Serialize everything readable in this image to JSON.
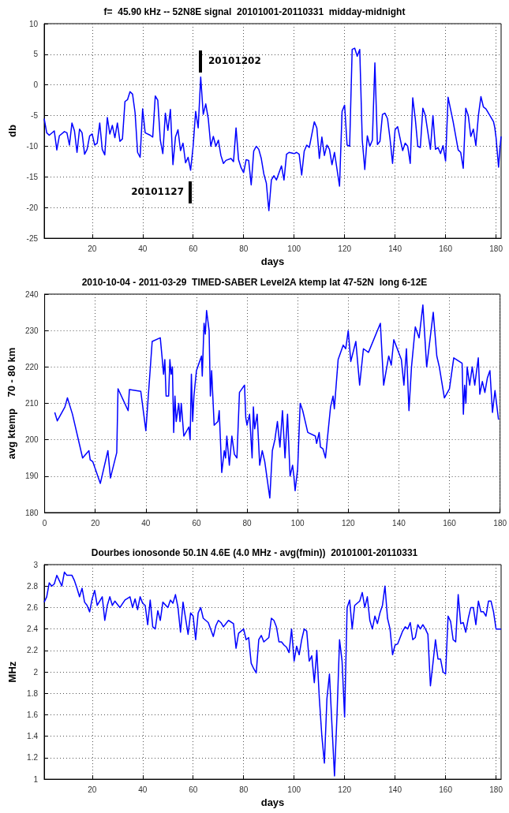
{
  "chart_data": [
    {
      "type": "line",
      "title": "f=  45.90 kHz -- 52N8E signal  20101001-20110331  midday-midnight",
      "xlabel": "days",
      "ylabel": "db",
      "xlim": [
        1,
        182
      ],
      "xticks": [
        20,
        40,
        60,
        80,
        100,
        120,
        140,
        160,
        180
      ],
      "ylim": [
        -25,
        10
      ],
      "yticks": [
        -25,
        -20,
        -15,
        -10,
        -5,
        0,
        5,
        10
      ],
      "grid": true,
      "marker": "none",
      "line_style": "solid",
      "annotations": [
        "20101202",
        "20101127"
      ],
      "series": [
        {
          "color": "#0000ff",
          "x": [
            1,
            2,
            3,
            5,
            6,
            7,
            9,
            10,
            11,
            12,
            13,
            14,
            15,
            16,
            17,
            18,
            19,
            20,
            21,
            22,
            23,
            24,
            25,
            26,
            27,
            28,
            29,
            30,
            31,
            32,
            33,
            34,
            35,
            36,
            37,
            38,
            39,
            40,
            41,
            43,
            44,
            45,
            46,
            47,
            48,
            49,
            50,
            51,
            52,
            53,
            54,
            55,
            56,
            57,
            58,
            59,
            60,
            61,
            62,
            63,
            64,
            65,
            66,
            67,
            68,
            69,
            70,
            71,
            72,
            73,
            75,
            76,
            77,
            78,
            79,
            80,
            81,
            82,
            83,
            84,
            85,
            86,
            87,
            88,
            89,
            90,
            91,
            92,
            93,
            95,
            96,
            97,
            98,
            100,
            101,
            102,
            103,
            104,
            105,
            106,
            108,
            109,
            110,
            111,
            112,
            113,
            114,
            115,
            116,
            118,
            119,
            120,
            121,
            122,
            123,
            124,
            125,
            126,
            127,
            128,
            129,
            130,
            131,
            132,
            133,
            134,
            135,
            136,
            137,
            138,
            139,
            140,
            141,
            143,
            144,
            145,
            146,
            147,
            148,
            149,
            150,
            151,
            152,
            154,
            155,
            156,
            157,
            158,
            159,
            160,
            161,
            162,
            163,
            165,
            166,
            167,
            168,
            169,
            170,
            171,
            172,
            173,
            174,
            175,
            176,
            178,
            179,
            179.5,
            180,
            181,
            181.5,
            182
          ],
          "values": [
            -5.5,
            -7.8,
            -8.2,
            -7.5,
            -10.6,
            -8.3,
            -7.6,
            -7.8,
            -9.8,
            -6.2,
            -7.5,
            -11,
            -7.2,
            -7.8,
            -11.3,
            -10.5,
            -8.3,
            -8,
            -9.8,
            -9.5,
            -6.2,
            -10.5,
            -11.4,
            -5.3,
            -8,
            -6.6,
            -8.6,
            -6.2,
            -9.2,
            -8.8,
            -2.7,
            -2.4,
            -1.1,
            -1.5,
            -4.5,
            -11,
            -11.8,
            -3.9,
            -7.8,
            -8.2,
            -8.5,
            -1.8,
            -2.5,
            -9,
            -11.2,
            -4.6,
            -7.4,
            -4,
            -13,
            -8.5,
            -7.3,
            -10.7,
            -9.5,
            -12.7,
            -11.8,
            -13.9,
            -10,
            -4.3,
            -7,
            1.3,
            -4.8,
            -3.1,
            -5.5,
            -10,
            -8.4,
            -10,
            -9,
            -11.5,
            -12.8,
            -12.3,
            -12,
            -12.5,
            -7,
            -12.2,
            -13.5,
            -14.3,
            -12.2,
            -12.3,
            -16.3,
            -10.8,
            -10,
            -10.5,
            -12,
            -14.5,
            -16,
            -20.5,
            -15.5,
            -14.8,
            -15.5,
            -13.2,
            -15.5,
            -11.3,
            -11,
            -11.2,
            -11,
            -11.3,
            -14.7,
            -10.8,
            -9.8,
            -10.2,
            -6,
            -7,
            -12,
            -8.5,
            -11.5,
            -9.8,
            -10.5,
            -13,
            -11,
            -16.5,
            -4.3,
            -3.3,
            -9.8,
            -10,
            5.8,
            6,
            4.7,
            5.8,
            -9,
            -13.8,
            -8.3,
            -10,
            -9,
            3.6,
            -9.7,
            -9.2,
            -4.8,
            -4.6,
            -5.5,
            -8.8,
            -12.8,
            -7.3,
            -6.8,
            -10.7,
            -9.5,
            -10,
            -12.8,
            -2.1,
            -5.5,
            -10,
            -10.2,
            -3.8,
            -5,
            -10.5,
            -5,
            -10.5,
            -10.2,
            -11.2,
            -9.9,
            -12.4,
            -2,
            -4,
            -6,
            -10.6,
            -11,
            -13.6,
            -3.8,
            -5,
            -8.4,
            -7.2,
            -9.9,
            -5,
            -1.9,
            -3.6,
            -3.9,
            -5.3,
            -6,
            -7,
            -8.6,
            -13.4,
            -10.5,
            -8.4
          ]
        }
      ]
    },
    {
      "type": "line",
      "title": "2010-10-04 - 2011-03-29  TIMED-SABER Level2A ktemp lat 47-52N  long 6-12E",
      "ylabel": "avg ktemp    70 - 80 km",
      "xlim": [
        0,
        180
      ],
      "xticks": [
        0,
        20,
        40,
        60,
        80,
        100,
        120,
        140,
        160,
        180
      ],
      "ylim": [
        180,
        240
      ],
      "yticks": [
        180,
        190,
        200,
        210,
        220,
        230,
        240
      ],
      "grid": true,
      "marker": "none",
      "line_style": "solid",
      "series": [
        {
          "color": "#0000ff",
          "x": [
            4,
            5,
            8,
            9,
            11,
            15,
            17.5,
            18,
            19,
            22,
            25,
            26,
            28.5,
            29,
            33,
            33.5,
            38,
            40,
            42.5,
            45.7,
            46.5,
            47,
            47.5,
            48,
            49,
            49.5,
            50,
            50.5,
            51,
            51.5,
            52,
            53,
            53.5,
            54,
            55,
            57,
            57.5,
            58,
            58.5,
            59,
            60,
            62,
            62.3,
            63,
            63.5,
            64,
            65,
            65.5,
            66,
            67,
            68.5,
            69,
            70,
            71,
            71.5,
            72,
            73,
            74,
            75,
            76,
            77,
            79,
            79.5,
            80,
            81,
            82,
            82.5,
            83,
            84,
            85,
            86,
            87,
            89,
            90,
            91,
            92,
            93,
            94,
            95,
            96,
            97,
            98,
            98.5,
            99,
            100,
            101,
            102,
            104,
            107,
            107.5,
            108.5,
            109,
            110,
            111,
            113,
            114,
            114.5,
            116,
            118,
            119,
            120,
            121,
            123,
            124.5,
            126,
            128,
            132.7,
            134,
            136,
            137,
            138,
            141,
            142,
            143,
            144,
            145,
            146.5,
            148,
            149.5,
            151,
            153.6,
            155,
            156,
            158,
            160,
            161.7,
            165,
            165.5,
            166,
            166.5,
            167,
            168,
            169,
            170,
            171.4,
            172,
            173,
            174,
            175,
            176,
            177,
            178,
            179.4
          ],
          "values": [
            207.5,
            205.2,
            209,
            211.5,
            207,
            195,
            197,
            194.5,
            194,
            188,
            197,
            189.5,
            196.5,
            214,
            208,
            213.8,
            213.3,
            202.5,
            227,
            228,
            222,
            218,
            222,
            212,
            212,
            222,
            218,
            220,
            202,
            212,
            205,
            210,
            205,
            210,
            201,
            203.5,
            200,
            218,
            205,
            212,
            219,
            223,
            217.5,
            232,
            229,
            235.5,
            230,
            212,
            219,
            204,
            205,
            208,
            191,
            197,
            195,
            201,
            193,
            201,
            196,
            195,
            213,
            215,
            206,
            204,
            207,
            195,
            209,
            203,
            207,
            193,
            197,
            194,
            184,
            197,
            200,
            205,
            198,
            208,
            195,
            207,
            190,
            193,
            190,
            186,
            192,
            210,
            208,
            202,
            201,
            199,
            202,
            198,
            197.5,
            195,
            209,
            212,
            208.5,
            222,
            226,
            225,
            230,
            221.5,
            227,
            215,
            225,
            224,
            232,
            215,
            223,
            220.5,
            227.5,
            222,
            215,
            225,
            208,
            220,
            231,
            228,
            237,
            220,
            235,
            223,
            220,
            211.5,
            214,
            222.5,
            221,
            207,
            215,
            210,
            220,
            215,
            220,
            215,
            222.5,
            212.5,
            216,
            213,
            217,
            219,
            207.5,
            213.5,
            205.5
          ]
        }
      ]
    },
    {
      "type": "line",
      "title": "Dourbes ionosonde 50.1N 4.6E (4.0 MHz - avg(fmin))  20101001-20110331",
      "xlabel": "days",
      "ylabel": "MHz",
      "xlim": [
        1,
        182
      ],
      "xticks": [
        20,
        40,
        60,
        80,
        100,
        120,
        140,
        160,
        180
      ],
      "ylim": [
        1,
        3
      ],
      "yticks": [
        1,
        1.2,
        1.4,
        1.6,
        1.8,
        2,
        2.2,
        2.4,
        2.6,
        2.8,
        3
      ],
      "grid": true,
      "marker": "none",
      "line_style": "solid",
      "series": [
        {
          "color": "#0000ff",
          "x": [
            1,
            2,
            3,
            4,
            5,
            6,
            7,
            8,
            9,
            10,
            12,
            13,
            14,
            15,
            16,
            17,
            18,
            19,
            20,
            21,
            22,
            24,
            25,
            26,
            27,
            28,
            29,
            31,
            33,
            35,
            36,
            37,
            38,
            39,
            40,
            41,
            42,
            43,
            44,
            45,
            46,
            47,
            48,
            50,
            51,
            52,
            53,
            54,
            55,
            56,
            57,
            58,
            59,
            60,
            61,
            62,
            63,
            64,
            66,
            68,
            69,
            70,
            71,
            72,
            74,
            76,
            77,
            78,
            80,
            81,
            82,
            83,
            84,
            85,
            86,
            87,
            88,
            89,
            90,
            91,
            92,
            93,
            94,
            95,
            96,
            97,
            98,
            99,
            100,
            101,
            102,
            103,
            104,
            105,
            106,
            107,
            108,
            109,
            110,
            111,
            112,
            113,
            114,
            115,
            116,
            117,
            118,
            119,
            120,
            121,
            122,
            123,
            124,
            126,
            127,
            128,
            129,
            130,
            131,
            132,
            133,
            134,
            135,
            136,
            137,
            138,
            139,
            140,
            141,
            143,
            144,
            145,
            146,
            147,
            148,
            149,
            150,
            151,
            152,
            153,
            154,
            155,
            156,
            157,
            158,
            159,
            160,
            161,
            162,
            163,
            164,
            165,
            166,
            167,
            168,
            169,
            170,
            171,
            172,
            173,
            174,
            175,
            176,
            177,
            178,
            179,
            180,
            182
          ],
          "values": [
            2.65,
            2.7,
            2.83,
            2.8,
            2.82,
            2.9,
            2.85,
            2.8,
            2.93,
            2.9,
            2.9,
            2.85,
            2.78,
            2.7,
            2.78,
            2.65,
            2.62,
            2.56,
            2.68,
            2.76,
            2.62,
            2.7,
            2.48,
            2.62,
            2.7,
            2.62,
            2.66,
            2.6,
            2.67,
            2.7,
            2.6,
            2.68,
            2.58,
            2.7,
            2.64,
            2.62,
            2.44,
            2.67,
            2.42,
            2.4,
            2.57,
            2.48,
            2.65,
            2.6,
            2.67,
            2.64,
            2.72,
            2.6,
            2.37,
            2.65,
            2.5,
            2.35,
            2.55,
            2.52,
            2.3,
            2.55,
            2.6,
            2.5,
            2.46,
            2.33,
            2.43,
            2.48,
            2.46,
            2.42,
            2.48,
            2.45,
            2.22,
            2.36,
            2.4,
            2.3,
            2.32,
            2.08,
            2.03,
            1.99,
            2.3,
            2.34,
            2.28,
            2.3,
            2.32,
            2.5,
            2.48,
            2.42,
            2.28,
            2.28,
            2.25,
            2.23,
            2.18,
            2.4,
            2.1,
            2.24,
            2.16,
            2.3,
            2.4,
            2.38,
            2.1,
            2.15,
            1.9,
            2.2,
            1.75,
            1.4,
            1.15,
            1.75,
            1.98,
            1.5,
            1.03,
            1.6,
            2.3,
            2.1,
            1.58,
            2.6,
            2.67,
            2.4,
            2.62,
            2.66,
            2.74,
            2.6,
            2.7,
            2.48,
            2.4,
            2.52,
            2.45,
            2.55,
            2.62,
            2.8,
            2.5,
            2.4,
            2.16,
            2.25,
            2.26,
            2.38,
            2.42,
            2.4,
            2.46,
            2.3,
            2.32,
            2.44,
            2.4,
            2.44,
            2.4,
            2.35,
            1.87,
            2.08,
            2.3,
            2.12,
            2.12,
            2.0,
            1.98,
            2.52,
            2.47,
            2.3,
            2.28,
            2.72,
            2.45,
            2.46,
            2.37,
            2.5,
            2.6,
            2.6,
            2.44,
            2.66,
            2.56,
            2.56,
            2.52,
            2.66,
            2.66,
            2.56,
            2.4,
            2.4
          ]
        }
      ]
    }
  ]
}
